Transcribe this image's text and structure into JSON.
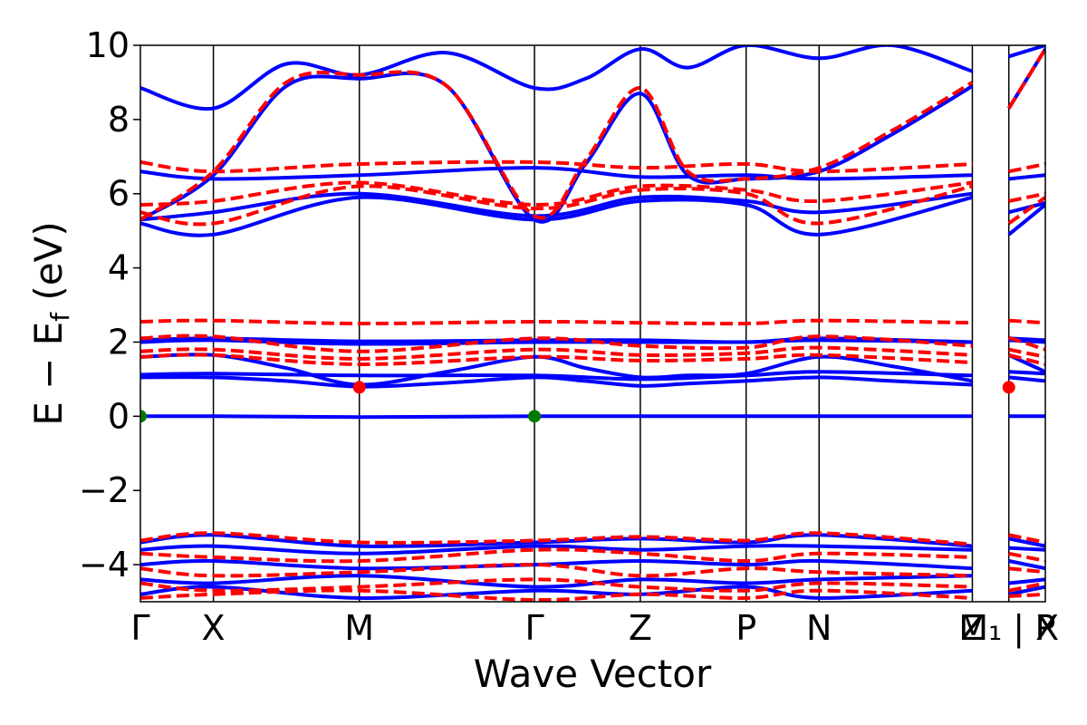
{
  "chart_data": {
    "type": "line",
    "title": "",
    "xlabel": "Wave Vector",
    "ylabel": "E − E_f (eV)",
    "ylabel_parts": {
      "before": "E − E",
      "sub": "f",
      "after": " (eV)"
    },
    "ylim": [
      -5,
      10
    ],
    "yticks": [
      -4,
      -2,
      0,
      2,
      4,
      6,
      8,
      10
    ],
    "ytick_labels": [
      "−4",
      "−2",
      "0",
      "2",
      "4",
      "6",
      "8",
      "10"
    ],
    "xlim": [
      0,
      12.4
    ],
    "kpoint_positions": [
      0,
      1.0,
      3.0,
      5.4,
      6.85,
      8.3,
      9.3,
      11.4,
      11.9,
      12.4
    ],
    "kpoint_labels": [
      "Γ",
      "X",
      "M",
      "Γ",
      "Z",
      "P",
      "N",
      "Z",
      "M₁ | X",
      "P"
    ],
    "path_break_after_index": 7,
    "grid": false,
    "series_styles": [
      {
        "name": "",
        "color": "#0000ff",
        "dash": "solid",
        "width": 4
      },
      {
        "name": "",
        "color": "#ff0000",
        "dash": "dashed",
        "width": 4
      }
    ],
    "bands": [
      {
        "series": 0,
        "x": [
          0,
          1.0,
          3.0,
          5.4,
          6.85,
          8.3,
          9.3,
          11.4,
          11.9,
          12.4
        ],
        "y": [
          0.0,
          0.0,
          -0.02,
          0.0,
          0.0,
          0.0,
          0.0,
          0.0,
          0.0,
          0.0
        ]
      },
      {
        "series": 0,
        "x": [
          0,
          1.0,
          2.0,
          3.0,
          4.2,
          5.4,
          6.1,
          6.85,
          7.5,
          8.3,
          9.3,
          10.3,
          11.4,
          11.9,
          12.4
        ],
        "y": [
          1.05,
          1.05,
          0.95,
          0.8,
          0.9,
          1.05,
          0.95,
          0.82,
          0.88,
          0.95,
          1.05,
          0.95,
          0.85,
          1.05,
          0.95
        ]
      },
      {
        "series": 0,
        "x": [
          0,
          1.0,
          3.0,
          5.4,
          6.85,
          8.3,
          9.3,
          11.4,
          11.9,
          12.4
        ],
        "y": [
          1.12,
          1.15,
          1.1,
          1.1,
          1.0,
          1.1,
          1.2,
          1.1,
          1.2,
          1.15
        ]
      },
      {
        "series": 0,
        "x": [
          0,
          1.0,
          2.0,
          3.0,
          4.2,
          5.4,
          6.1,
          6.85,
          7.5,
          8.3,
          9.3,
          10.3,
          11.4,
          11.9,
          12.4
        ],
        "y": [
          1.6,
          1.65,
          1.3,
          0.85,
          1.2,
          1.6,
          1.3,
          1.05,
          1.1,
          1.15,
          1.6,
          1.35,
          0.95,
          1.65,
          1.2
        ]
      },
      {
        "series": 0,
        "x": [
          0,
          1.0,
          3.0,
          5.4,
          6.85,
          8.3,
          9.3,
          11.4,
          11.9,
          12.4
        ],
        "y": [
          2.0,
          2.05,
          1.95,
          2.0,
          2.0,
          2.0,
          2.05,
          2.0,
          2.05,
          2.0
        ]
      },
      {
        "series": 0,
        "x": [
          0,
          1.0,
          3.0,
          5.4,
          6.85,
          8.3,
          9.3,
          11.4,
          11.9,
          12.4
        ],
        "y": [
          2.05,
          2.1,
          2.02,
          2.05,
          2.05,
          2.0,
          2.1,
          2.0,
          2.1,
          2.05
        ]
      },
      {
        "series": 1,
        "x": [
          0,
          1.0,
          3.0,
          5.4,
          6.85,
          8.3,
          9.3,
          11.4,
          11.9,
          12.4
        ],
        "y": [
          2.55,
          2.58,
          2.5,
          2.55,
          2.52,
          2.5,
          2.58,
          2.52,
          2.58,
          2.52
        ]
      },
      {
        "series": 1,
        "x": [
          0,
          1.0,
          3.0,
          5.4,
          6.85,
          8.3,
          9.3,
          11.4,
          11.9,
          12.4
        ],
        "y": [
          2.1,
          2.15,
          1.75,
          2.1,
          1.9,
          1.85,
          2.15,
          1.9,
          2.12,
          1.8
        ]
      },
      {
        "series": 1,
        "x": [
          0,
          1.0,
          3.0,
          5.4,
          6.85,
          8.3,
          9.3,
          11.4,
          11.9,
          12.4
        ],
        "y": [
          1.75,
          1.8,
          1.55,
          1.8,
          1.65,
          1.7,
          1.85,
          1.65,
          1.8,
          1.6
        ]
      },
      {
        "series": 1,
        "x": [
          0,
          1.0,
          3.0,
          5.4,
          6.85,
          8.3,
          9.3,
          11.4,
          11.9,
          12.4
        ],
        "y": [
          1.6,
          1.65,
          1.4,
          1.6,
          1.5,
          1.55,
          1.65,
          1.45,
          1.65,
          1.4
        ]
      },
      {
        "series": 0,
        "x": [
          0,
          1.0,
          3.0,
          5.4,
          6.85,
          8.3,
          9.3,
          11.4,
          11.9,
          12.4
        ],
        "y": [
          5.2,
          4.9,
          5.9,
          5.3,
          5.8,
          5.7,
          4.9,
          5.9,
          4.9,
          5.7
        ]
      },
      {
        "series": 0,
        "x": [
          0,
          1.0,
          3.0,
          5.4,
          6.85,
          8.3,
          9.3,
          11.4,
          11.9,
          12.4
        ],
        "y": [
          5.3,
          5.5,
          6.0,
          5.4,
          5.9,
          5.8,
          5.5,
          6.0,
          5.5,
          5.75
        ]
      },
      {
        "series": 0,
        "x": [
          0,
          1.0,
          3.0,
          5.4,
          6.85,
          8.3,
          9.3,
          11.4,
          11.9,
          12.4
        ],
        "y": [
          6.6,
          6.4,
          6.5,
          6.7,
          6.45,
          6.5,
          6.4,
          6.5,
          6.4,
          6.5
        ]
      },
      {
        "series": 1,
        "x": [
          0,
          1.0,
          3.0,
          5.4,
          6.85,
          8.3,
          9.3,
          11.4,
          11.9,
          12.4
        ],
        "y": [
          6.85,
          6.6,
          6.8,
          6.85,
          6.7,
          6.8,
          6.6,
          6.8,
          6.6,
          6.8
        ]
      },
      {
        "series": 1,
        "x": [
          0,
          1.0,
          3.0,
          5.4,
          6.85,
          8.3,
          9.3,
          11.4,
          11.9,
          12.4
        ],
        "y": [
          5.7,
          5.8,
          6.3,
          5.7,
          6.2,
          6.1,
          5.8,
          6.3,
          5.8,
          6.0
        ]
      },
      {
        "series": 1,
        "x": [
          0,
          1.0,
          3.0,
          5.4,
          6.85,
          8.3,
          9.3,
          11.4,
          11.9,
          12.4
        ],
        "y": [
          5.5,
          5.2,
          6.2,
          5.6,
          6.1,
          6.0,
          5.2,
          6.2,
          5.2,
          5.9
        ]
      },
      {
        "series": 0,
        "x": [
          0,
          1.0,
          2.0,
          3.0,
          4.2,
          5.4,
          6.1,
          6.85,
          7.5,
          8.3,
          9.3,
          10.3,
          11.4,
          11.9,
          12.4
        ],
        "y": [
          5.3,
          6.5,
          8.9,
          9.1,
          8.9,
          5.3,
          6.8,
          8.7,
          6.5,
          6.4,
          6.6,
          7.6,
          8.9,
          8.3,
          9.9
        ]
      },
      {
        "series": 1,
        "x": [
          0,
          1.0,
          2.0,
          3.0,
          4.2,
          5.4,
          6.1,
          6.85,
          7.5,
          8.3,
          9.3,
          10.3,
          11.4,
          11.9,
          12.4
        ],
        "y": [
          5.3,
          6.6,
          9.0,
          9.2,
          8.9,
          5.4,
          6.9,
          8.85,
          6.6,
          6.4,
          6.7,
          7.7,
          9.0,
          8.3,
          9.9
        ]
      },
      {
        "series": 0,
        "x": [
          0,
          1.0,
          2.0,
          3.0,
          4.2,
          5.4,
          6.1,
          6.85,
          7.5,
          8.3,
          9.3,
          10.3,
          11.4,
          11.9,
          12.4
        ],
        "y": [
          8.85,
          8.3,
          9.5,
          9.2,
          9.8,
          8.85,
          9.1,
          9.9,
          9.4,
          10.0,
          9.65,
          10.0,
          9.3,
          9.7,
          10.0
        ]
      },
      {
        "series": 0,
        "x": [
          0,
          1.0,
          3.0,
          5.4,
          6.85,
          8.3,
          9.3,
          11.4,
          11.9,
          12.4
        ],
        "y": [
          -3.4,
          -3.2,
          -3.5,
          -3.4,
          -3.3,
          -3.4,
          -3.2,
          -3.5,
          -3.3,
          -3.5
        ]
      },
      {
        "series": 1,
        "x": [
          0,
          1.0,
          3.0,
          5.4,
          6.85,
          8.3,
          9.3,
          11.4,
          11.9,
          12.4
        ],
        "y": [
          -3.35,
          -3.15,
          -3.4,
          -3.35,
          -3.25,
          -3.35,
          -3.15,
          -3.45,
          -3.2,
          -3.4
        ]
      },
      {
        "series": 0,
        "x": [
          0,
          1.0,
          3.0,
          5.4,
          6.85,
          8.3,
          9.3,
          11.4,
          11.9,
          12.4
        ],
        "y": [
          -3.6,
          -3.5,
          -3.7,
          -3.5,
          -3.6,
          -3.5,
          -3.5,
          -3.6,
          -3.55,
          -3.6
        ]
      },
      {
        "series": 1,
        "x": [
          0,
          1.0,
          3.0,
          5.4,
          6.85,
          8.3,
          9.3,
          11.4,
          11.9,
          12.4
        ],
        "y": [
          -3.7,
          -3.8,
          -3.9,
          -3.6,
          -3.7,
          -3.9,
          -3.7,
          -3.8,
          -3.7,
          -3.9
        ]
      },
      {
        "series": 0,
        "x": [
          0,
          1.0,
          3.0,
          5.4,
          6.85,
          8.3,
          9.3,
          11.4,
          11.9,
          12.4
        ],
        "y": [
          -4.0,
          -3.9,
          -4.1,
          -4.0,
          -3.9,
          -4.0,
          -3.9,
          -4.1,
          -3.9,
          -4.1
        ]
      },
      {
        "series": 1,
        "x": [
          0,
          1.0,
          3.0,
          5.4,
          6.85,
          8.3,
          9.3,
          11.4,
          11.9,
          12.4
        ],
        "y": [
          -4.1,
          -4.3,
          -4.2,
          -4.0,
          -4.3,
          -4.1,
          -4.2,
          -4.3,
          -4.1,
          -4.2
        ]
      },
      {
        "series": 0,
        "x": [
          0,
          1.0,
          3.0,
          5.4,
          6.85,
          8.3,
          9.3,
          11.4,
          11.9,
          12.4
        ],
        "y": [
          -4.4,
          -4.5,
          -4.3,
          -4.6,
          -4.4,
          -4.5,
          -4.4,
          -4.3,
          -4.5,
          -4.4
        ]
      },
      {
        "series": 1,
        "x": [
          0,
          1.0,
          3.0,
          5.4,
          6.85,
          8.3,
          9.3,
          11.4,
          11.9,
          12.4
        ],
        "y": [
          -4.5,
          -4.7,
          -4.6,
          -4.4,
          -4.6,
          -4.7,
          -4.5,
          -4.6,
          -4.7,
          -4.5
        ]
      },
      {
        "series": 0,
        "x": [
          0,
          1.0,
          3.0,
          5.4,
          6.85,
          8.3,
          9.3,
          11.4,
          11.9,
          12.4
        ],
        "y": [
          -4.8,
          -4.6,
          -4.9,
          -4.7,
          -4.8,
          -4.6,
          -4.9,
          -4.7,
          -4.8,
          -4.6
        ]
      },
      {
        "series": 1,
        "x": [
          0,
          1.0,
          3.0,
          5.4,
          6.85,
          8.3,
          9.3,
          11.4,
          11.9,
          12.4
        ],
        "y": [
          -4.9,
          -4.8,
          -4.7,
          -4.95,
          -4.8,
          -4.9,
          -4.7,
          -4.9,
          -4.85,
          -4.8
        ]
      }
    ],
    "markers": [
      {
        "x": 0,
        "y": 0.0,
        "color": "#007a00"
      },
      {
        "x": 5.4,
        "y": 0.0,
        "color": "#007a00"
      },
      {
        "x": 3.0,
        "y": 0.78,
        "color": "#ff0000"
      },
      {
        "x": 11.9,
        "y": 0.78,
        "color": "#ff0000"
      }
    ]
  }
}
